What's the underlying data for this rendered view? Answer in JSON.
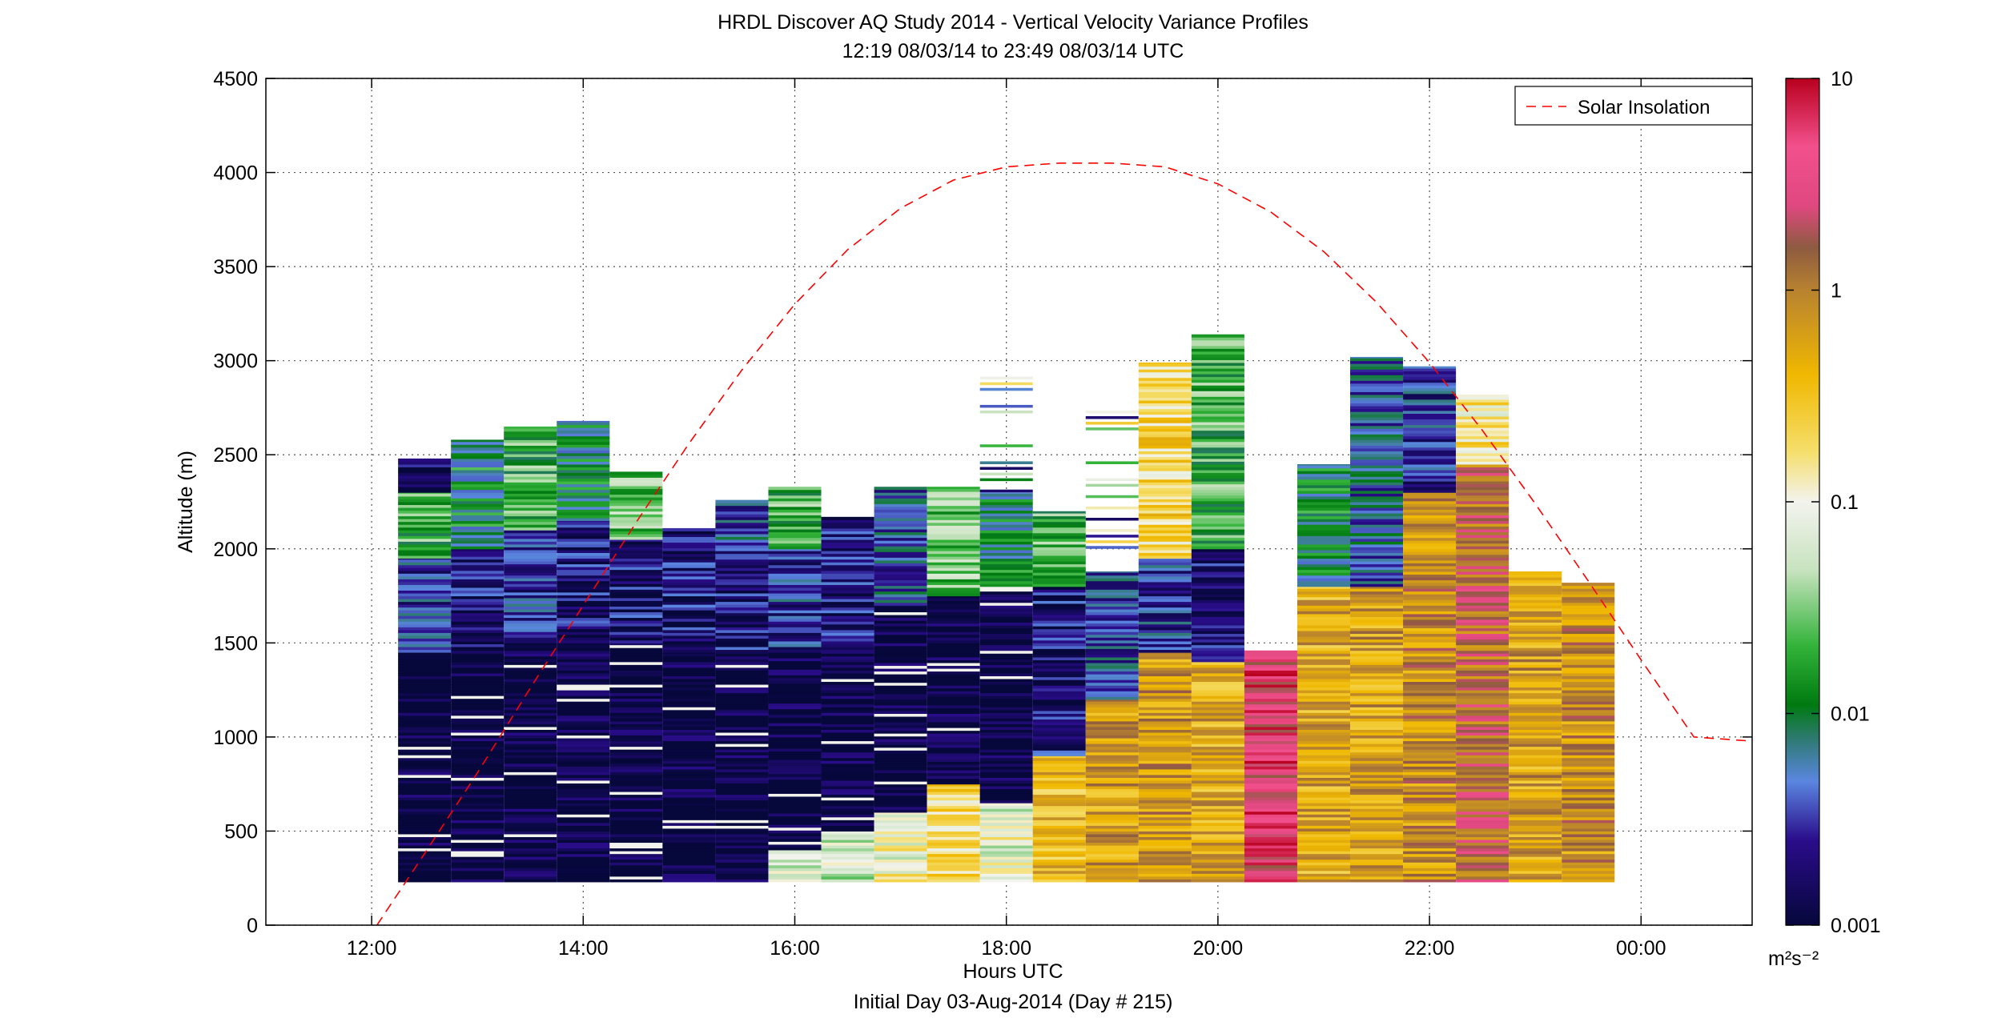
{
  "figure": {
    "title_line1": "HRDL Discover AQ Study 2014 - Vertical Velocity Variance Profiles",
    "title_line2": "12:19 08/03/14 to 23:49 08/03/14  UTC",
    "xlabel": "Hours UTC",
    "xlabel2": "Initial Day 03-Aug-2014 (Day # 215)",
    "ylabel": "Altitude (m)",
    "colorbar_units": "m²s⁻²"
  },
  "chart_data": {
    "type": "heatmap",
    "title": "HRDL Discover AQ Study 2014 - Vertical Velocity Variance Profiles",
    "subtitle": "12:19 08/03/14 to 23:49 08/03/14  UTC",
    "xlabel": "Hours UTC",
    "ylabel": "Altitude (m)",
    "xlim": [
      11,
      25.05
    ],
    "ylim": [
      0,
      4500
    ],
    "x_ticks": [
      {
        "value": 12,
        "label": "12:00"
      },
      {
        "value": 14,
        "label": "14:00"
      },
      {
        "value": 16,
        "label": "16:00"
      },
      {
        "value": 18,
        "label": "18:00"
      },
      {
        "value": 20,
        "label": "20:00"
      },
      {
        "value": 22,
        "label": "22:00"
      },
      {
        "value": 24,
        "label": "00:00"
      }
    ],
    "y_ticks": [
      0,
      500,
      1000,
      1500,
      2000,
      2500,
      3000,
      3500,
      4000,
      4500
    ],
    "grid": true,
    "colorbar": {
      "scale": "log",
      "range": [
        0.001,
        10
      ],
      "ticks": [
        {
          "value": 0.001,
          "label": "0.001"
        },
        {
          "value": 0.01,
          "label": "0.01"
        },
        {
          "value": 0.1,
          "label": "0.1"
        },
        {
          "value": 1,
          "label": "1"
        },
        {
          "value": 10,
          "label": "10"
        }
      ],
      "units": "m²s⁻²"
    },
    "legend": {
      "position": "top-right",
      "entries": [
        {
          "name": "Solar Insolation",
          "style": "dashed",
          "color": "#ff0000"
        }
      ]
    },
    "solar_insolation": {
      "x": [
        12.05,
        12.5,
        13,
        13.5,
        14,
        14.5,
        15,
        15.5,
        16,
        16.5,
        17,
        17.5,
        18,
        18.5,
        19,
        19.5,
        20,
        20.5,
        21,
        21.5,
        22,
        22.5,
        23,
        23.5,
        24,
        24.5,
        25.0
      ],
      "y": [
        0,
        380,
        810,
        1260,
        1700,
        2140,
        2560,
        2950,
        3300,
        3590,
        3810,
        3960,
        4030,
        4050,
        4050,
        4030,
        3940,
        3790,
        3580,
        3310,
        2990,
        2630,
        2240,
        1830,
        1410,
        1000,
        980
      ]
    },
    "profiles": [
      {
        "t": 12.5,
        "top": 2480,
        "bottom": 230,
        "segments": [
          {
            "from": 230,
            "to": 1450,
            "v": 0.001
          },
          {
            "from": 1450,
            "to": 1950,
            "v": 0.003
          },
          {
            "from": 1950,
            "to": 2300,
            "v": 0.02
          },
          {
            "from": 2300,
            "to": 2480,
            "v": 0.002
          }
        ]
      },
      {
        "t": 13.0,
        "top": 2580,
        "bottom": 230,
        "segments": [
          {
            "from": 230,
            "to": 1480,
            "v": 0.001
          },
          {
            "from": 1480,
            "to": 2000,
            "v": 0.002
          },
          {
            "from": 2000,
            "to": 2580,
            "v": 0.01
          }
        ]
      },
      {
        "t": 13.5,
        "top": 2650,
        "bottom": 230,
        "segments": [
          {
            "from": 230,
            "to": 1500,
            "v": 0.001
          },
          {
            "from": 1500,
            "to": 2100,
            "v": 0.003
          },
          {
            "from": 2100,
            "to": 2650,
            "v": 0.02
          }
        ]
      },
      {
        "t": 14.0,
        "top": 2680,
        "bottom": 230,
        "segments": [
          {
            "from": 230,
            "to": 1500,
            "v": 0.001
          },
          {
            "from": 1500,
            "to": 2150,
            "v": 0.002
          },
          {
            "from": 2150,
            "to": 2680,
            "v": 0.01
          }
        ]
      },
      {
        "t": 14.5,
        "top": 2410,
        "bottom": 230,
        "segments": [
          {
            "from": 230,
            "to": 1500,
            "v": 0.001
          },
          {
            "from": 1500,
            "to": 2050,
            "v": 0.002
          },
          {
            "from": 2050,
            "to": 2410,
            "v": 0.03
          }
        ]
      },
      {
        "t": 15.0,
        "top": 2110,
        "bottom": 230,
        "segments": [
          {
            "from": 230,
            "to": 1450,
            "v": 0.001
          },
          {
            "from": 1450,
            "to": 2110,
            "v": 0.002
          }
        ]
      },
      {
        "t": 15.5,
        "top": 2260,
        "bottom": 230,
        "segments": [
          {
            "from": 230,
            "to": 1450,
            "v": 0.001
          },
          {
            "from": 1450,
            "to": 2050,
            "v": 0.002
          },
          {
            "from": 2050,
            "to": 2260,
            "v": 0.004
          }
        ]
      },
      {
        "t": 16.0,
        "top": 2330,
        "bottom": 230,
        "segments": [
          {
            "from": 230,
            "to": 400,
            "v": 0.08
          },
          {
            "from": 400,
            "to": 1450,
            "v": 0.001
          },
          {
            "from": 1450,
            "to": 2000,
            "v": 0.003
          },
          {
            "from": 2000,
            "to": 2330,
            "v": 0.02
          }
        ]
      },
      {
        "t": 16.5,
        "top": 2170,
        "bottom": 230,
        "segments": [
          {
            "from": 230,
            "to": 500,
            "v": 0.05
          },
          {
            "from": 500,
            "to": 1450,
            "v": 0.001
          },
          {
            "from": 1450,
            "to": 2170,
            "v": 0.002
          }
        ]
      },
      {
        "t": 17.0,
        "top": 2330,
        "bottom": 230,
        "segments": [
          {
            "from": 230,
            "to": 600,
            "v": 0.1
          },
          {
            "from": 600,
            "to": 1700,
            "v": 0.001
          },
          {
            "from": 1700,
            "to": 2330,
            "v": 0.004
          }
        ]
      },
      {
        "t": 17.5,
        "top": 2330,
        "bottom": 230,
        "segments": [
          {
            "from": 230,
            "to": 750,
            "v": 0.2
          },
          {
            "from": 750,
            "to": 1750,
            "v": 0.001
          },
          {
            "from": 1750,
            "to": 2330,
            "v": 0.03
          }
        ]
      },
      {
        "t": 18.0,
        "top": 2930,
        "bottom": 230,
        "segments": [
          {
            "from": 230,
            "to": 650,
            "v": 0.08
          },
          {
            "from": 650,
            "to": 1800,
            "v": 0.001
          },
          {
            "from": 1800,
            "to": 2300,
            "v": 0.01
          }
        ]
      },
      {
        "t": 18.5,
        "top": 2200,
        "bottom": 230,
        "segments": [
          {
            "from": 230,
            "to": 900,
            "v": 0.4
          },
          {
            "from": 900,
            "to": 1800,
            "v": 0.002
          },
          {
            "from": 1800,
            "to": 2200,
            "v": 0.02
          }
        ]
      },
      {
        "t": 19.0,
        "top": 2810,
        "bottom": 230,
        "segments": [
          {
            "from": 230,
            "to": 1200,
            "v": 0.6
          },
          {
            "from": 1200,
            "to": 1880,
            "v": 0.004
          }
        ]
      },
      {
        "t": 19.5,
        "top": 2990,
        "bottom": 230,
        "segments": [
          {
            "from": 230,
            "to": 1450,
            "v": 0.7
          },
          {
            "from": 1450,
            "to": 1950,
            "v": 0.003
          },
          {
            "from": 1950,
            "to": 2990,
            "v": 0.2
          }
        ]
      },
      {
        "t": 20.0,
        "top": 3140,
        "bottom": 230,
        "segments": [
          {
            "from": 230,
            "to": 1400,
            "v": 0.5
          },
          {
            "from": 1400,
            "to": 2000,
            "v": 0.002
          },
          {
            "from": 2000,
            "to": 3140,
            "v": 0.02
          }
        ]
      },
      {
        "t": 20.5,
        "top": 1460,
        "bottom": 230,
        "segments": [
          {
            "from": 230,
            "to": 1460,
            "v": 4
          }
        ]
      },
      {
        "t": 21.0,
        "top": 2450,
        "bottom": 230,
        "segments": [
          {
            "from": 230,
            "to": 1800,
            "v": 0.5
          },
          {
            "from": 1800,
            "to": 2450,
            "v": 0.01
          }
        ]
      },
      {
        "t": 21.5,
        "top": 3020,
        "bottom": 230,
        "segments": [
          {
            "from": 230,
            "to": 1800,
            "v": 0.6
          },
          {
            "from": 1800,
            "to": 3020,
            "v": 0.005
          }
        ]
      },
      {
        "t": 22.0,
        "top": 2970,
        "bottom": 230,
        "segments": [
          {
            "from": 230,
            "to": 2300,
            "v": 0.8
          },
          {
            "from": 2300,
            "to": 2970,
            "v": 0.003
          }
        ]
      },
      {
        "t": 22.5,
        "top": 2820,
        "bottom": 230,
        "segments": [
          {
            "from": 230,
            "to": 2450,
            "v": 1.5
          },
          {
            "from": 2450,
            "to": 2820,
            "v": 0.15
          }
        ]
      },
      {
        "t": 23.0,
        "top": 1880,
        "bottom": 230,
        "segments": [
          {
            "from": 230,
            "to": 1880,
            "v": 0.6
          }
        ]
      },
      {
        "t": 23.5,
        "top": 1820,
        "bottom": 230,
        "segments": [
          {
            "from": 230,
            "to": 1820,
            "v": 0.8
          }
        ]
      }
    ]
  }
}
